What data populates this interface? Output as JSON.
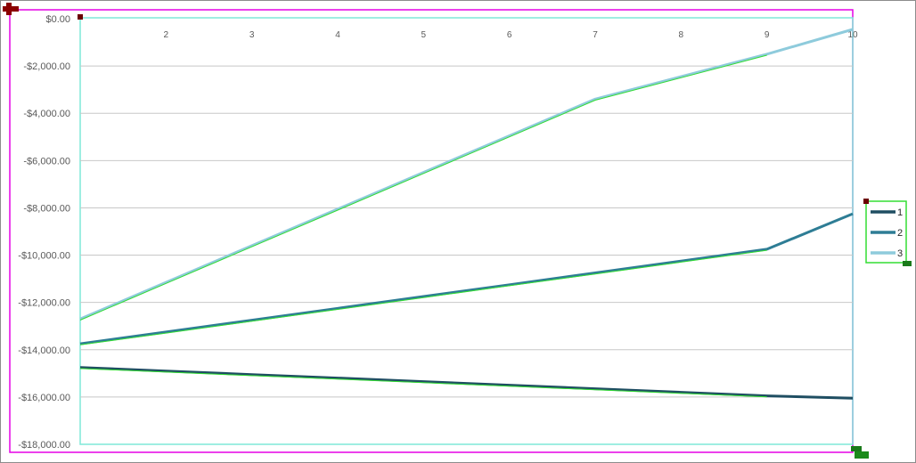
{
  "chart_data": {
    "type": "line",
    "title": "",
    "xlabel": "",
    "ylabel": "",
    "x": [
      1,
      2,
      3,
      4,
      5,
      6,
      7,
      8,
      9,
      10
    ],
    "x_tick_labels": [
      "2",
      "3",
      "4",
      "5",
      "6",
      "7",
      "8",
      "9",
      "10"
    ],
    "ylim": [
      -18000,
      0
    ],
    "y_ticks": [
      0,
      -2000,
      -4000,
      -6000,
      -8000,
      -10000,
      -12000,
      -14000,
      -16000,
      -18000
    ],
    "y_tick_labels": [
      "$0.00",
      "-$2,000.00",
      "-$4,000.00",
      "-$6,000.00",
      "-$8,000.00",
      "-$10,000.00",
      "-$12,000.00",
      "-$14,000.00",
      "-$16,000.00",
      "-$18,000.00"
    ],
    "grid": true,
    "legend_position": "right",
    "series": [
      {
        "name": "1",
        "color": "#1f4e62",
        "values": [
          -14750,
          -14900,
          -15050,
          -15200,
          -15350,
          -15500,
          -15650,
          -15800,
          -15950,
          -16050
        ]
      },
      {
        "name": "2",
        "color": "#2e7d95",
        "values": [
          -13750,
          -13250,
          -12750,
          -12250,
          -11750,
          -11250,
          -10750,
          -10250,
          -9750,
          -8250
        ]
      },
      {
        "name": "3",
        "color": "#8ecbdc",
        "values": [
          -12700,
          -11150,
          -9600,
          -8050,
          -6500,
          -4950,
          -3400,
          -2450,
          -1500,
          -450
        ]
      }
    ],
    "highlight_color": "#33dd33"
  }
}
